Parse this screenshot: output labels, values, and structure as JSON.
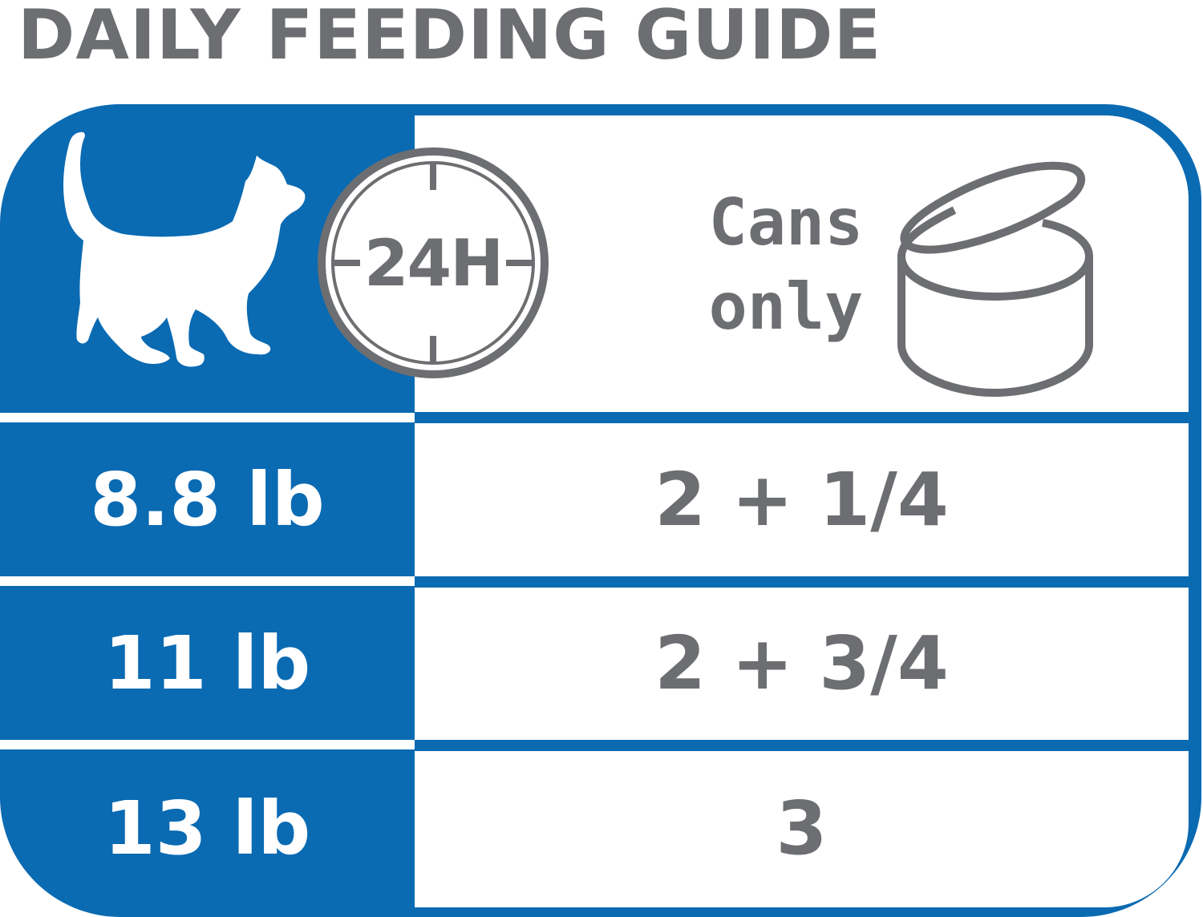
{
  "title": "DAILY FEEDING GUIDE",
  "colors": {
    "blue": "#0a6ab2",
    "gray": "#6d6e71",
    "white": "#ffffff"
  },
  "header": {
    "cat_icon": "cat-silhouette-icon",
    "clock_icon": "clock-dial-icon",
    "clock_label": "24H",
    "cans_line1": "Cans",
    "cans_line2": "only",
    "can_icon": "open-can-icon"
  },
  "rows": [
    {
      "weight": "8.8 lb",
      "amount": "2 + 1/4"
    },
    {
      "weight": "11 lb",
      "amount": "2 + 3/4"
    },
    {
      "weight": "13 lb",
      "amount": "3"
    }
  ]
}
